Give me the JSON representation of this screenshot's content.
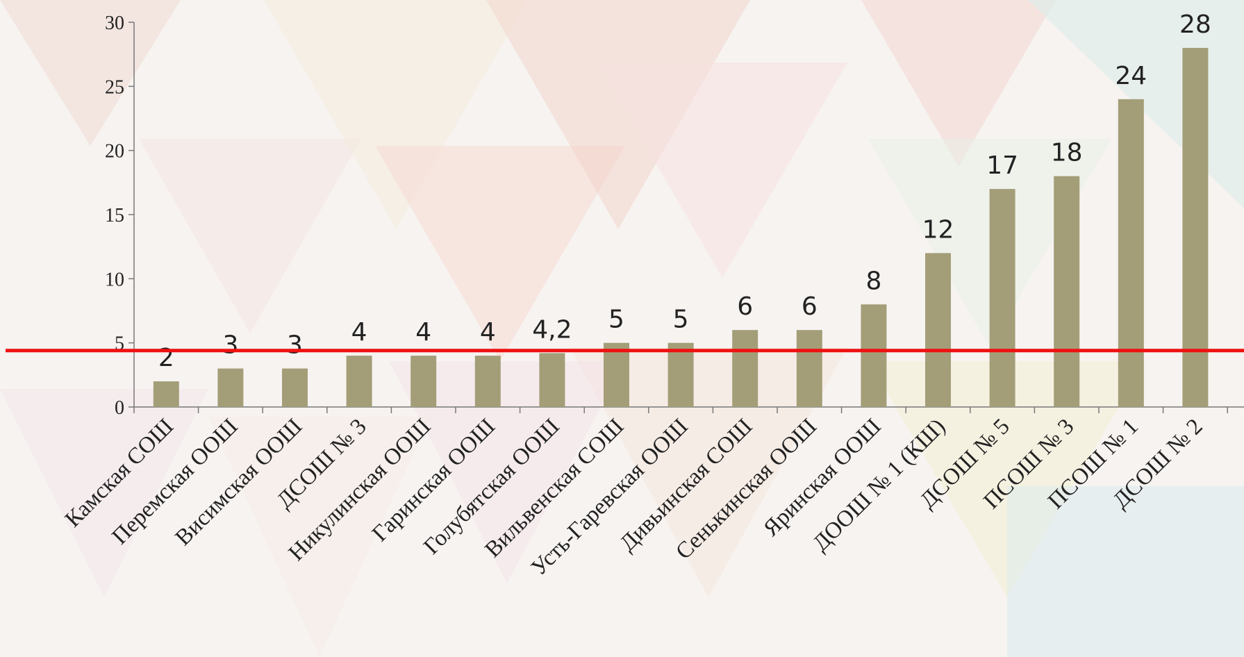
{
  "chart_data": {
    "type": "bar",
    "categories": [
      "Камская СОШ",
      "Перемская ООШ",
      "Висимская ООШ",
      "ДСОШ № 3",
      "Никулинская ООШ",
      "Гаринская ООШ",
      "Голубятская ООШ",
      "Вильвенская СОШ",
      "Усть-Гаревская ООШ",
      "Дивьинская СОШ",
      "Сенькинская ООШ",
      "Яринская ООШ",
      "ДООШ № 1 (КШ)",
      "ДСОШ № 5",
      "ПСОШ № 3",
      "ПСОШ № 1",
      "ДСОШ № 2"
    ],
    "values": [
      2,
      3,
      3,
      4,
      4,
      4,
      4.2,
      5,
      5,
      6,
      6,
      8,
      12,
      17,
      18,
      24,
      28
    ],
    "data_labels": [
      "2",
      "3",
      "3",
      "4",
      "4",
      "4",
      "4,2",
      "5",
      "5",
      "6",
      "6",
      "8",
      "12",
      "17",
      "18",
      "24",
      "28"
    ],
    "y_ticks": [
      "0",
      "5",
      "10",
      "15",
      "20",
      "25",
      "30"
    ],
    "ylim": [
      0,
      30
    ],
    "reference_line": 4.4,
    "title": "",
    "xlabel": "",
    "ylabel": "",
    "grid": false,
    "bar_color": "#a39e78",
    "reference_line_color": "#ee1111"
  }
}
